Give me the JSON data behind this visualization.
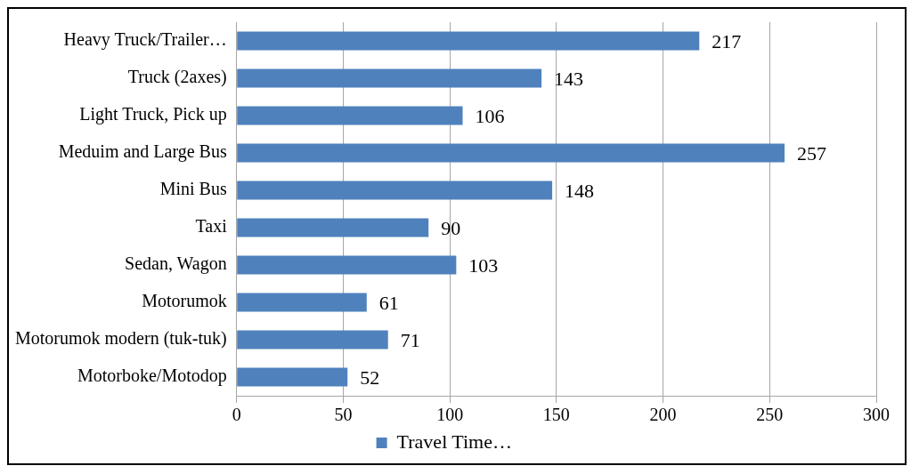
{
  "chart_data": {
    "type": "bar",
    "orientation": "horizontal",
    "categories": [
      "Heavy Truck/Trailer…",
      "Truck (2axes)",
      "Light Truck, Pick up",
      "Meduim and Large Bus",
      "Mini Bus",
      "Taxi",
      "Sedan, Wagon",
      "Motorumok",
      "Motorumok modern (tuk-tuk)",
      "Motorboke/Motodop"
    ],
    "series": [
      {
        "name": "Travel Time…",
        "color": "#4f81bd",
        "values": [
          217,
          143,
          106,
          257,
          148,
          90,
          103,
          61,
          71,
          52
        ]
      }
    ],
    "xlim": [
      0,
      300
    ],
    "xticks": [
      0,
      50,
      100,
      150,
      200,
      250,
      300
    ],
    "grid": "x",
    "legend": "bottom",
    "data_labels": true
  }
}
